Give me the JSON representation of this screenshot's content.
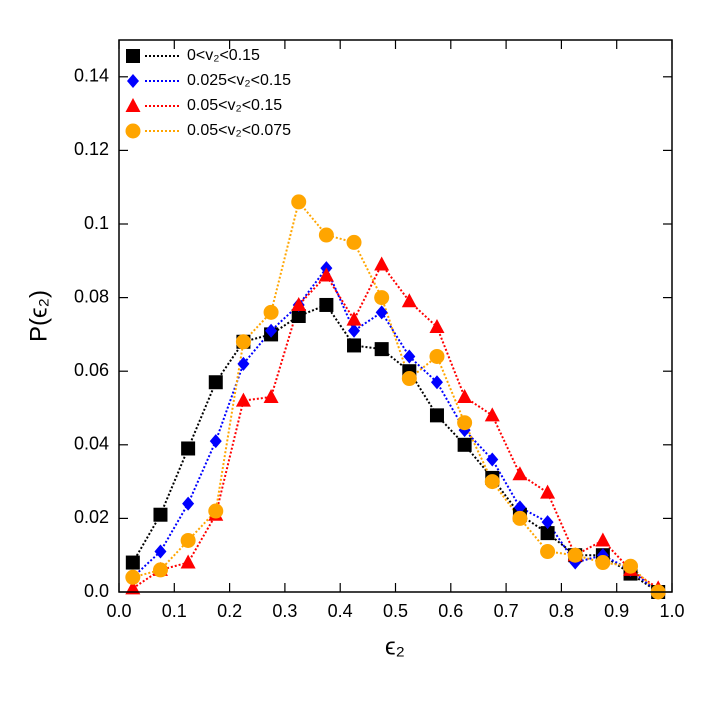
{
  "chart_data": {
    "type": "line",
    "x_label": "ϵ₂",
    "y_label": "P(ϵ₂)",
    "x": [
      0.025,
      0.075,
      0.125,
      0.175,
      0.225,
      0.275,
      0.325,
      0.375,
      0.425,
      0.475,
      0.525,
      0.575,
      0.625,
      0.675,
      0.725,
      0.775,
      0.825,
      0.875,
      0.925,
      0.975
    ],
    "series": [
      {
        "name": "0<v₂<0.15",
        "color": "#000000",
        "marker": "square",
        "values": [
          0.008,
          0.021,
          0.039,
          0.057,
          0.068,
          0.07,
          0.075,
          0.078,
          0.067,
          0.066,
          0.06,
          0.048,
          0.04,
          0.031,
          0.021,
          0.016,
          0.01,
          0.01,
          0.005,
          0.0
        ]
      },
      {
        "name": "0.025<v₂<0.15",
        "color": "#0000ff",
        "marker": "diamond",
        "values": [
          0.004,
          0.011,
          0.024,
          0.041,
          0.062,
          0.071,
          0.078,
          0.088,
          0.071,
          0.076,
          0.064,
          0.057,
          0.044,
          0.036,
          0.023,
          0.019,
          0.008,
          0.01,
          0.006,
          0.0
        ]
      },
      {
        "name": "0.05<v₂<0.15",
        "color": "#ff0000",
        "marker": "triangle",
        "values": [
          0.001,
          0.006,
          0.008,
          0.021,
          0.052,
          0.053,
          0.078,
          0.086,
          0.074,
          0.089,
          0.079,
          0.072,
          0.053,
          0.048,
          0.032,
          0.027,
          0.01,
          0.014,
          0.006,
          0.001
        ]
      },
      {
        "name": "0.05<v₂<0.075",
        "color": "#ffa500",
        "marker": "circle",
        "values": [
          0.004,
          0.006,
          0.014,
          0.022,
          0.068,
          0.076,
          0.106,
          0.097,
          0.095,
          0.08,
          0.058,
          0.064,
          0.046,
          0.03,
          0.02,
          0.011,
          0.01,
          0.008,
          0.007,
          0.0
        ]
      }
    ],
    "line_style": "dotted",
    "legend": "upper-left",
    "xlim": [
      0,
      1
    ],
    "ylim": [
      0,
      0.15
    ],
    "xticks": [
      {
        "value": 0,
        "label": "0.0"
      },
      0.1,
      0.2,
      0.3,
      0.4,
      0.5,
      0.6,
      0.7,
      0.8,
      0.9,
      {
        "value": 1,
        "label": "1.0"
      }
    ],
    "yticks": [
      {
        "value": 0,
        "label": "0.0"
      },
      0.02,
      0.04,
      0.06,
      0.08,
      0.1,
      0.12,
      0.14
    ]
  }
}
